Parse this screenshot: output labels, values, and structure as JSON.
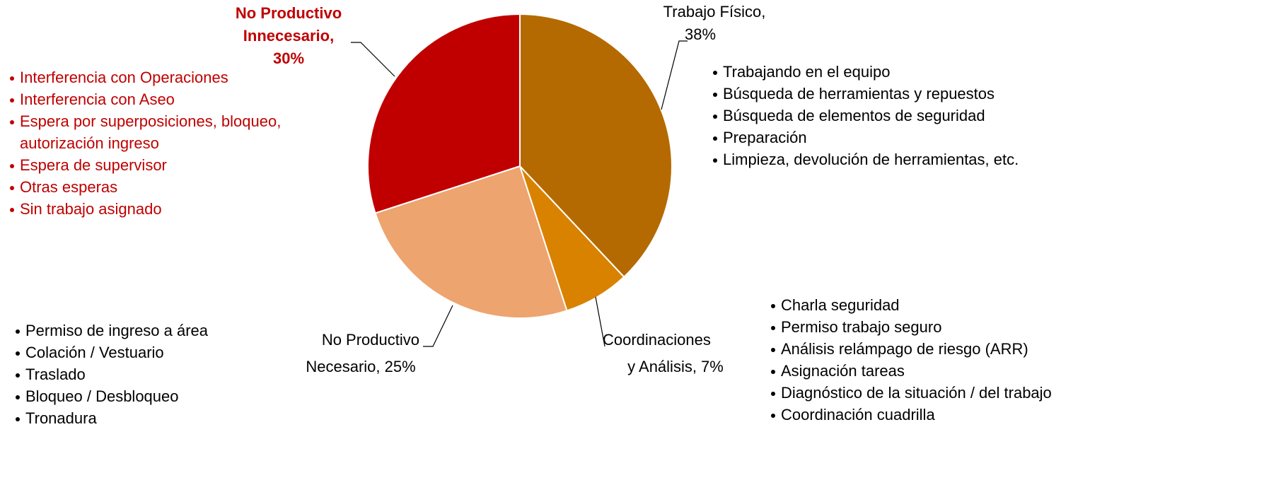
{
  "chart_data": {
    "type": "pie",
    "categories": [
      "Trabajo Físico",
      "Coordinaciones y Análisis",
      "No Productivo Necesario",
      "No Productivo Innecesario"
    ],
    "values": [
      38,
      7,
      25,
      30
    ],
    "colors": [
      "#b46a00",
      "#d98200",
      "#eda46e",
      "#c00000"
    ],
    "labels": [
      [
        "Trabajo Físico,",
        "38%"
      ],
      [
        "Coordinaciones",
        "y Análisis, 7%"
      ],
      [
        "No Productivo",
        "Necesario, 25%"
      ],
      [
        "No Productivo",
        "Innecesario,",
        "30%"
      ]
    ],
    "notes": [
      {
        "color": "#000000",
        "items": [
          [
            "Trabajando en el equipo"
          ],
          [
            "Búsqueda de herramientas y repuestos"
          ],
          [
            "Búsqueda de elementos de seguridad"
          ],
          [
            "Preparación"
          ],
          [
            "Limpieza, devolución de herramientas, etc."
          ]
        ]
      },
      {
        "color": "#000000",
        "items": [
          [
            "Charla seguridad"
          ],
          [
            "Permiso trabajo seguro"
          ],
          [
            "Análisis relámpago de riesgo (ARR)"
          ],
          [
            "Asignación tareas"
          ],
          [
            "Diagnóstico de la situación / del trabajo"
          ],
          [
            "Coordinación cuadrilla"
          ]
        ]
      },
      {
        "color": "#000000",
        "items": [
          [
            "Permiso de ingreso a área"
          ],
          [
            "Colación / Vestuario"
          ],
          [
            "Traslado"
          ],
          [
            "Bloqueo / Desbloqueo"
          ],
          [
            "Tronadura"
          ]
        ]
      },
      {
        "color": "#c00000",
        "items": [
          [
            "Interferencia con Operaciones"
          ],
          [
            "Interferencia con Aseo"
          ],
          [
            "Espera por superposiciones, bloqueo,",
            "autorización ingreso"
          ],
          [
            "Espera de supervisor"
          ],
          [
            "Otras esperas"
          ],
          [
            "Sin trabajo asignado"
          ]
        ]
      }
    ]
  }
}
